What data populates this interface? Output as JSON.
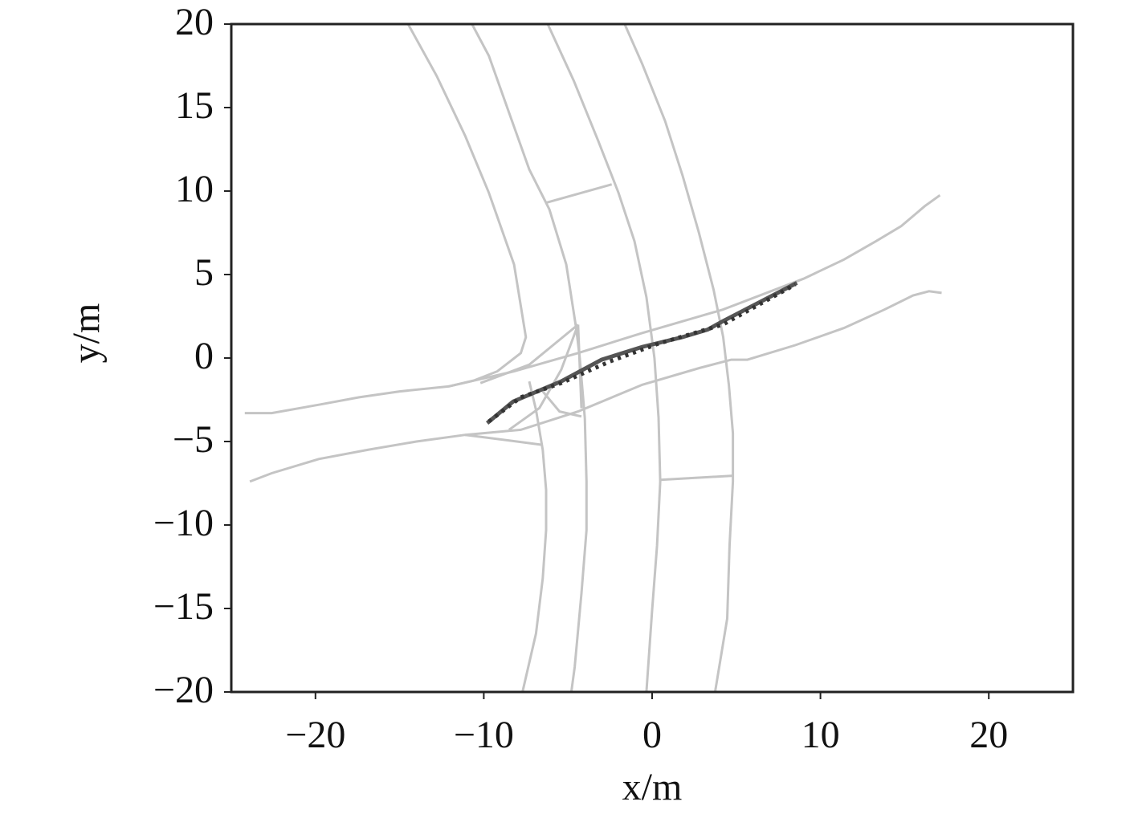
{
  "chart_data": {
    "type": "line",
    "xlabel": "x/m",
    "ylabel": "y/m",
    "xlim": [
      -25,
      25
    ],
    "ylim": [
      -20,
      20
    ],
    "xticks": [
      {
        "value": -20,
        "label": "−20"
      },
      {
        "value": -10,
        "label": "−10"
      },
      0,
      10,
      20
    ],
    "yticks": [
      {
        "value": -20,
        "label": "−20"
      },
      {
        "value": -15,
        "label": "−15"
      },
      {
        "value": -10,
        "label": "−10"
      },
      {
        "value": -5,
        "label": "−5"
      },
      0,
      5,
      10,
      15,
      20
    ],
    "series": [
      {
        "color": "#c4c4c4",
        "line_style": "solid",
        "x": [
          -14.5,
          -12.8,
          -11.1,
          -9.7,
          -8.2,
          -7.5,
          -7.8,
          -9.2,
          -10.6,
          -12.1
        ],
        "values": [
          20,
          16.9,
          13.3,
          9.9,
          5.6,
          1.25,
          0.3,
          -0.8,
          -1.35,
          -1.7
        ]
      },
      {
        "color": "#c4c4c4",
        "line_style": "solid",
        "x": [
          -10.7,
          -9.7,
          -8.5,
          -7.3,
          -6.1,
          -5.1,
          -4.5,
          -4.3,
          -4.0,
          -3.9,
          -3.9,
          -4.2,
          -4.6,
          -4.8
        ],
        "values": [
          20,
          18.1,
          14.7,
          11.3,
          8.9,
          5.6,
          1.7,
          0,
          -3.6,
          -7.4,
          -10.3,
          -14.1,
          -18.5,
          -20
        ]
      },
      {
        "color": "#c4c4c4",
        "line_style": "solid",
        "x": [
          -6.2,
          -4.65,
          -3.2,
          -2.0,
          -1.05,
          -0.34,
          0.14,
          0.38,
          0.48,
          0.29,
          0,
          -0.34
        ],
        "values": [
          20,
          16.6,
          13.0,
          9.9,
          7.0,
          3.65,
          0,
          -3.56,
          -7.4,
          -11.25,
          -15.1,
          -20
        ]
      },
      {
        "color": "#c4c4c4",
        "line_style": "solid",
        "x": [
          -1.63,
          -0.58,
          0.77,
          1.82,
          2.78,
          3.65,
          4.22,
          4.56,
          4.8,
          4.8,
          4.6,
          4.46,
          3.74
        ],
        "values": [
          20,
          17.6,
          14.2,
          10.9,
          7.5,
          4.1,
          1.25,
          -1.63,
          -4.5,
          -7.4,
          -11.25,
          -15.6,
          -20
        ]
      },
      {
        "color": "#c4c4c4",
        "line_style": "solid",
        "x": [
          -7.3,
          -6.9,
          -6.5,
          -6.3,
          -6.3,
          -6.5,
          -6.9,
          -7.7
        ],
        "values": [
          -1.4,
          -3.1,
          -5.5,
          -7.9,
          -10.3,
          -13.2,
          -16.5,
          -20
        ]
      },
      {
        "color": "#c4c4c4",
        "line_style": "solid",
        "x": [
          -24.2,
          -22.6,
          -19.8,
          -17.4,
          -15.0,
          -12.1,
          -8.2,
          -4.4,
          -0.58,
          4.2,
          9.0,
          11.4,
          13.3,
          14.8,
          16.2,
          17.1
        ],
        "values": [
          -3.3,
          -3.3,
          -2.8,
          -2.35,
          -2.0,
          -1.7,
          -0.8,
          0.3,
          1.5,
          2.9,
          4.75,
          5.9,
          7.0,
          7.9,
          9.1,
          9.75
        ]
      },
      {
        "color": "#c4c4c4",
        "line_style": "solid",
        "x": [
          -23.9,
          -22.6,
          -19.8,
          -16.9,
          -14.0,
          -11.1,
          -7.8,
          -4.4,
          -0.58,
          2.8,
          4.7,
          5.66,
          8.5,
          11.4,
          13.8,
          15.5,
          16.45,
          17.2
        ],
        "values": [
          -7.4,
          -6.9,
          -6.05,
          -5.5,
          -5.0,
          -4.6,
          -4.3,
          -3.2,
          -1.6,
          -0.6,
          -0.1,
          -0.1,
          0.77,
          1.8,
          2.9,
          3.75,
          4.0,
          3.9
        ]
      },
      {
        "color": "#c4c4c4",
        "line_style": "solid",
        "x": [
          -6.3,
          -2.4
        ],
        "values": [
          9.3,
          10.4
        ]
      },
      {
        "color": "#c4c4c4",
        "line_style": "solid",
        "x": [
          0.48,
          4.8
        ],
        "values": [
          -7.3,
          -7.05
        ]
      },
      {
        "color": "#c4c4c4",
        "line_style": "solid",
        "x": [
          -11.1,
          -6.5
        ],
        "values": [
          -4.6,
          -5.2
        ]
      },
      {
        "color": "#c4c4c4",
        "line_style": "solid",
        "x": [
          -10.2,
          -7.3,
          -4.4
        ],
        "values": [
          -1.5,
          -0.4,
          2.0
        ]
      },
      {
        "color": "#c4c4c4",
        "line_style": "solid",
        "x": [
          -4.4,
          -5.4,
          -6.7,
          -8.5
        ],
        "values": [
          2.0,
          -0.7,
          -3.0,
          -4.3
        ]
      },
      {
        "color": "#c4c4c4",
        "line_style": "solid",
        "x": [
          -4.4,
          -4.2
        ],
        "values": [
          2.0,
          -3.0
        ]
      },
      {
        "color": "#c4c4c4",
        "line_style": "solid",
        "x": [
          -6.5,
          -5.5,
          -4.2
        ],
        "values": [
          -2.0,
          -3.2,
          -3.5
        ]
      },
      {
        "color": "#555555",
        "line_style": "solid",
        "x": [
          -9.8,
          -8.25,
          -5.4,
          -3.0,
          -0.58,
          1.8,
          3.3,
          4.2,
          8.6
        ],
        "values": [
          -3.9,
          -2.6,
          -1.4,
          -0.1,
          0.67,
          1.25,
          1.7,
          2.2,
          4.5
        ]
      },
      {
        "color": "#333333",
        "line_style": "dotted",
        "x": [
          -9.7,
          -7.8,
          -5.4,
          -2.5,
          0.4,
          4.2,
          8.5
        ],
        "values": [
          -3.8,
          -2.35,
          -1.5,
          -0.2,
          0.87,
          2.0,
          4.4
        ]
      }
    ]
  }
}
